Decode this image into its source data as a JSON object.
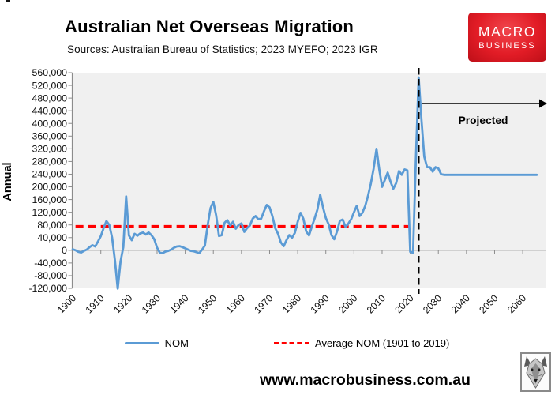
{
  "header": {
    "title": "Australian Net Overseas Migration",
    "subtitle": "Sources: Australian Bureau of Statistics; 2023 MYEFO; 2023 IGR",
    "logo": {
      "line1": "MACRO",
      "line2": "BUSINESS"
    }
  },
  "chart_data": {
    "type": "line",
    "title": "Australian Net Overseas Migration",
    "xlabel": "",
    "ylabel": "Annual",
    "ylim": [
      -120000,
      560000
    ],
    "y_tick_step": 40000,
    "y_tick_labels": [
      "560,000",
      "520,000",
      "480,000",
      "440,000",
      "400,000",
      "360,000",
      "320,000",
      "280,000",
      "240,000",
      "200,000",
      "160,000",
      "120,000",
      "80,000",
      "40,000",
      "0",
      "-40,000",
      "-80,000",
      "-120,000"
    ],
    "x_tick_years": [
      1900,
      1910,
      1920,
      1930,
      1940,
      1950,
      1960,
      1970,
      1980,
      1990,
      2000,
      2010,
      2020,
      2030,
      2040,
      2050,
      2060
    ],
    "grid": false,
    "plot_bg": "#f0f0f0",
    "axis_color": "#8c8c8c",
    "legend_position": "bottom",
    "series": [
      {
        "name": "NOM",
        "color": "#5B9BD5",
        "style": "solid",
        "start_year": 1900,
        "end_year": 2065,
        "values": [
          3000,
          0,
          -5000,
          -7000,
          -2000,
          2000,
          10000,
          16000,
          12000,
          28000,
          45000,
          70000,
          92000,
          80000,
          40000,
          -30000,
          -121000,
          -35000,
          10000,
          170000,
          47000,
          32000,
          52000,
          46000,
          53000,
          56000,
          50000,
          56000,
          48000,
          35000,
          8000,
          -8000,
          -9000,
          -4000,
          -2000,
          2000,
          8000,
          12000,
          13000,
          10000,
          6000,
          2000,
          -2000,
          -3000,
          -6000,
          -9000,
          2000,
          15000,
          80000,
          133000,
          153000,
          110000,
          45000,
          48000,
          87000,
          95000,
          78000,
          90000,
          68000,
          80000,
          85000,
          58000,
          70000,
          78000,
          100000,
          108000,
          98000,
          100000,
          123000,
          143000,
          135000,
          108000,
          70000,
          52000,
          25000,
          13000,
          32000,
          48000,
          40000,
          55000,
          90000,
          118000,
          100000,
          60000,
          47000,
          74000,
          100000,
          128000,
          175000,
          135000,
          102000,
          82000,
          48000,
          35000,
          60000,
          93000,
          97000,
          73000,
          84000,
          98000,
          120000,
          140000,
          108000,
          118000,
          140000,
          172000,
          210000,
          258000,
          320000,
          255000,
          200000,
          222000,
          245000,
          216000,
          194000,
          212000,
          250000,
          238000,
          255000,
          252000,
          -5000,
          -8000,
          280000,
          545000,
          410000,
          295000,
          262000,
          262000,
          248000,
          262000,
          258000,
          240000,
          238000,
          238000,
          238000,
          238000,
          238000,
          238000,
          238000,
          238000,
          238000,
          238000,
          238000,
          238000,
          238000,
          238000,
          238000,
          238000,
          238000,
          238000,
          238000,
          238000,
          238000,
          238000,
          238000,
          238000,
          238000,
          238000,
          238000,
          238000,
          238000,
          238000,
          238000,
          238000,
          238000,
          238000
        ]
      },
      {
        "name": "Average NOM (1901 to 2019)",
        "color": "#FF0000",
        "style": "dashed",
        "value": 75000,
        "from_year": 1901,
        "to_year": 2019.5
      }
    ],
    "annotations": {
      "divider_year": 2023,
      "divider_style": "black-dashed",
      "arrow_label": "Projected"
    }
  },
  "legend": {
    "items": [
      {
        "label": "NOM",
        "swatch": "blue-line"
      },
      {
        "label": "Average NOM (1901 to 2019)",
        "swatch": "red-dashed"
      }
    ]
  },
  "footer": {
    "url": "www.macrobusiness.com.au",
    "logo_icon": "wolf-icon"
  }
}
